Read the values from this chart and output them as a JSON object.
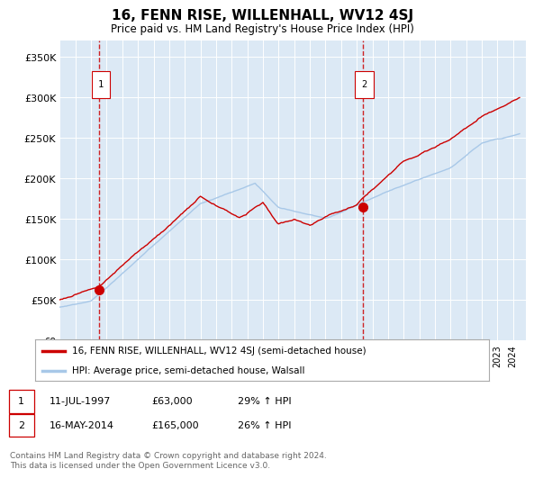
{
  "title": "16, FENN RISE, WILLENHALL, WV12 4SJ",
  "subtitle": "Price paid vs. HM Land Registry's House Price Index (HPI)",
  "bg_color": "#dce9f5",
  "plot_bg_color": "#dce9f5",
  "line_color_property": "#cc0000",
  "line_color_hpi": "#a8c8e8",
  "ylim": [
    0,
    370000
  ],
  "yticks": [
    0,
    50000,
    100000,
    150000,
    200000,
    250000,
    300000,
    350000
  ],
  "ytick_labels": [
    "£0",
    "£50K",
    "£100K",
    "£150K",
    "£200K",
    "£250K",
    "£300K",
    "£350K"
  ],
  "legend_label_property": "16, FENN RISE, WILLENHALL, WV12 4SJ (semi-detached house)",
  "legend_label_hpi": "HPI: Average price, semi-detached house, Walsall",
  "sale1_date_num": 1997.53,
  "sale1_price": 63000,
  "sale1_label": "1",
  "sale2_date_num": 2014.37,
  "sale2_price": 165000,
  "sale2_label": "2",
  "note1_date": "11-JUL-1997",
  "note1_price": "£63,000",
  "note1_hpi": "29% ↑ HPI",
  "note2_date": "16-MAY-2014",
  "note2_price": "£165,000",
  "note2_hpi": "26% ↑ HPI",
  "footer": "Contains HM Land Registry data © Crown copyright and database right 2024.\nThis data is licensed under the Open Government Licence v3.0."
}
